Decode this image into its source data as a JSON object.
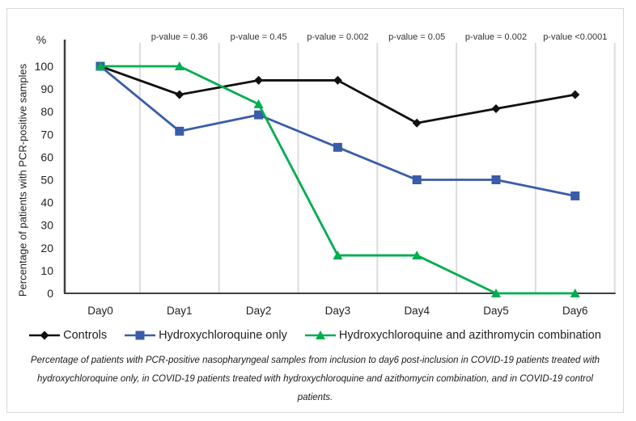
{
  "figure": {
    "percent_label": "%",
    "caption": "Percentage of patients with PCR-positive nasopharyngeal samples from inclusion to day6 post-inclusion in COVID-19 patients treated with hydroxychloroquine only, in COVID-19 patients treated with hydroxychloroquine and azithomycin combination, and in COVID-19 control patients."
  },
  "chart_data": {
    "type": "line",
    "title": "",
    "xlabel": "",
    "ylabel": "Percentage of patients with PCR-positive samples",
    "y_unit_label": "%",
    "categories": [
      "Day0",
      "Day1",
      "Day2",
      "Day3",
      "Day4",
      "Day5",
      "Day6"
    ],
    "ylim": [
      0,
      100
    ],
    "ytick_step": 10,
    "grid": "vertical dividers between categories",
    "legend_position": "bottom",
    "axis_color": "#404040",
    "grid_color": "#dcdcdc",
    "series": [
      {
        "name": "Controls",
        "marker": "diamond",
        "color": "#111111",
        "values": [
          100,
          87.5,
          93.8,
          93.8,
          75,
          81.3,
          87.5
        ]
      },
      {
        "name": "Hydroxychloroquine only",
        "marker": "square",
        "color": "#3a5ca9",
        "values": [
          100,
          71.4,
          78.6,
          64.3,
          50,
          50,
          42.9
        ]
      },
      {
        "name": "Hydroxychloroquine and azithromycin combination",
        "marker": "triangle",
        "color": "#00ad50",
        "values": [
          100,
          100,
          83.3,
          16.7,
          16.7,
          0,
          0
        ]
      }
    ],
    "annotations": [
      {
        "category": "Day1",
        "label": "p-value = 0.36"
      },
      {
        "category": "Day2",
        "label": "p-value = 0.45"
      },
      {
        "category": "Day3",
        "label": "p-value = 0.002"
      },
      {
        "category": "Day4",
        "label": "p-value = 0.05"
      },
      {
        "category": "Day5",
        "label": "p-value = 0.002"
      },
      {
        "category": "Day6",
        "label": "p-value <0.0001"
      }
    ]
  }
}
